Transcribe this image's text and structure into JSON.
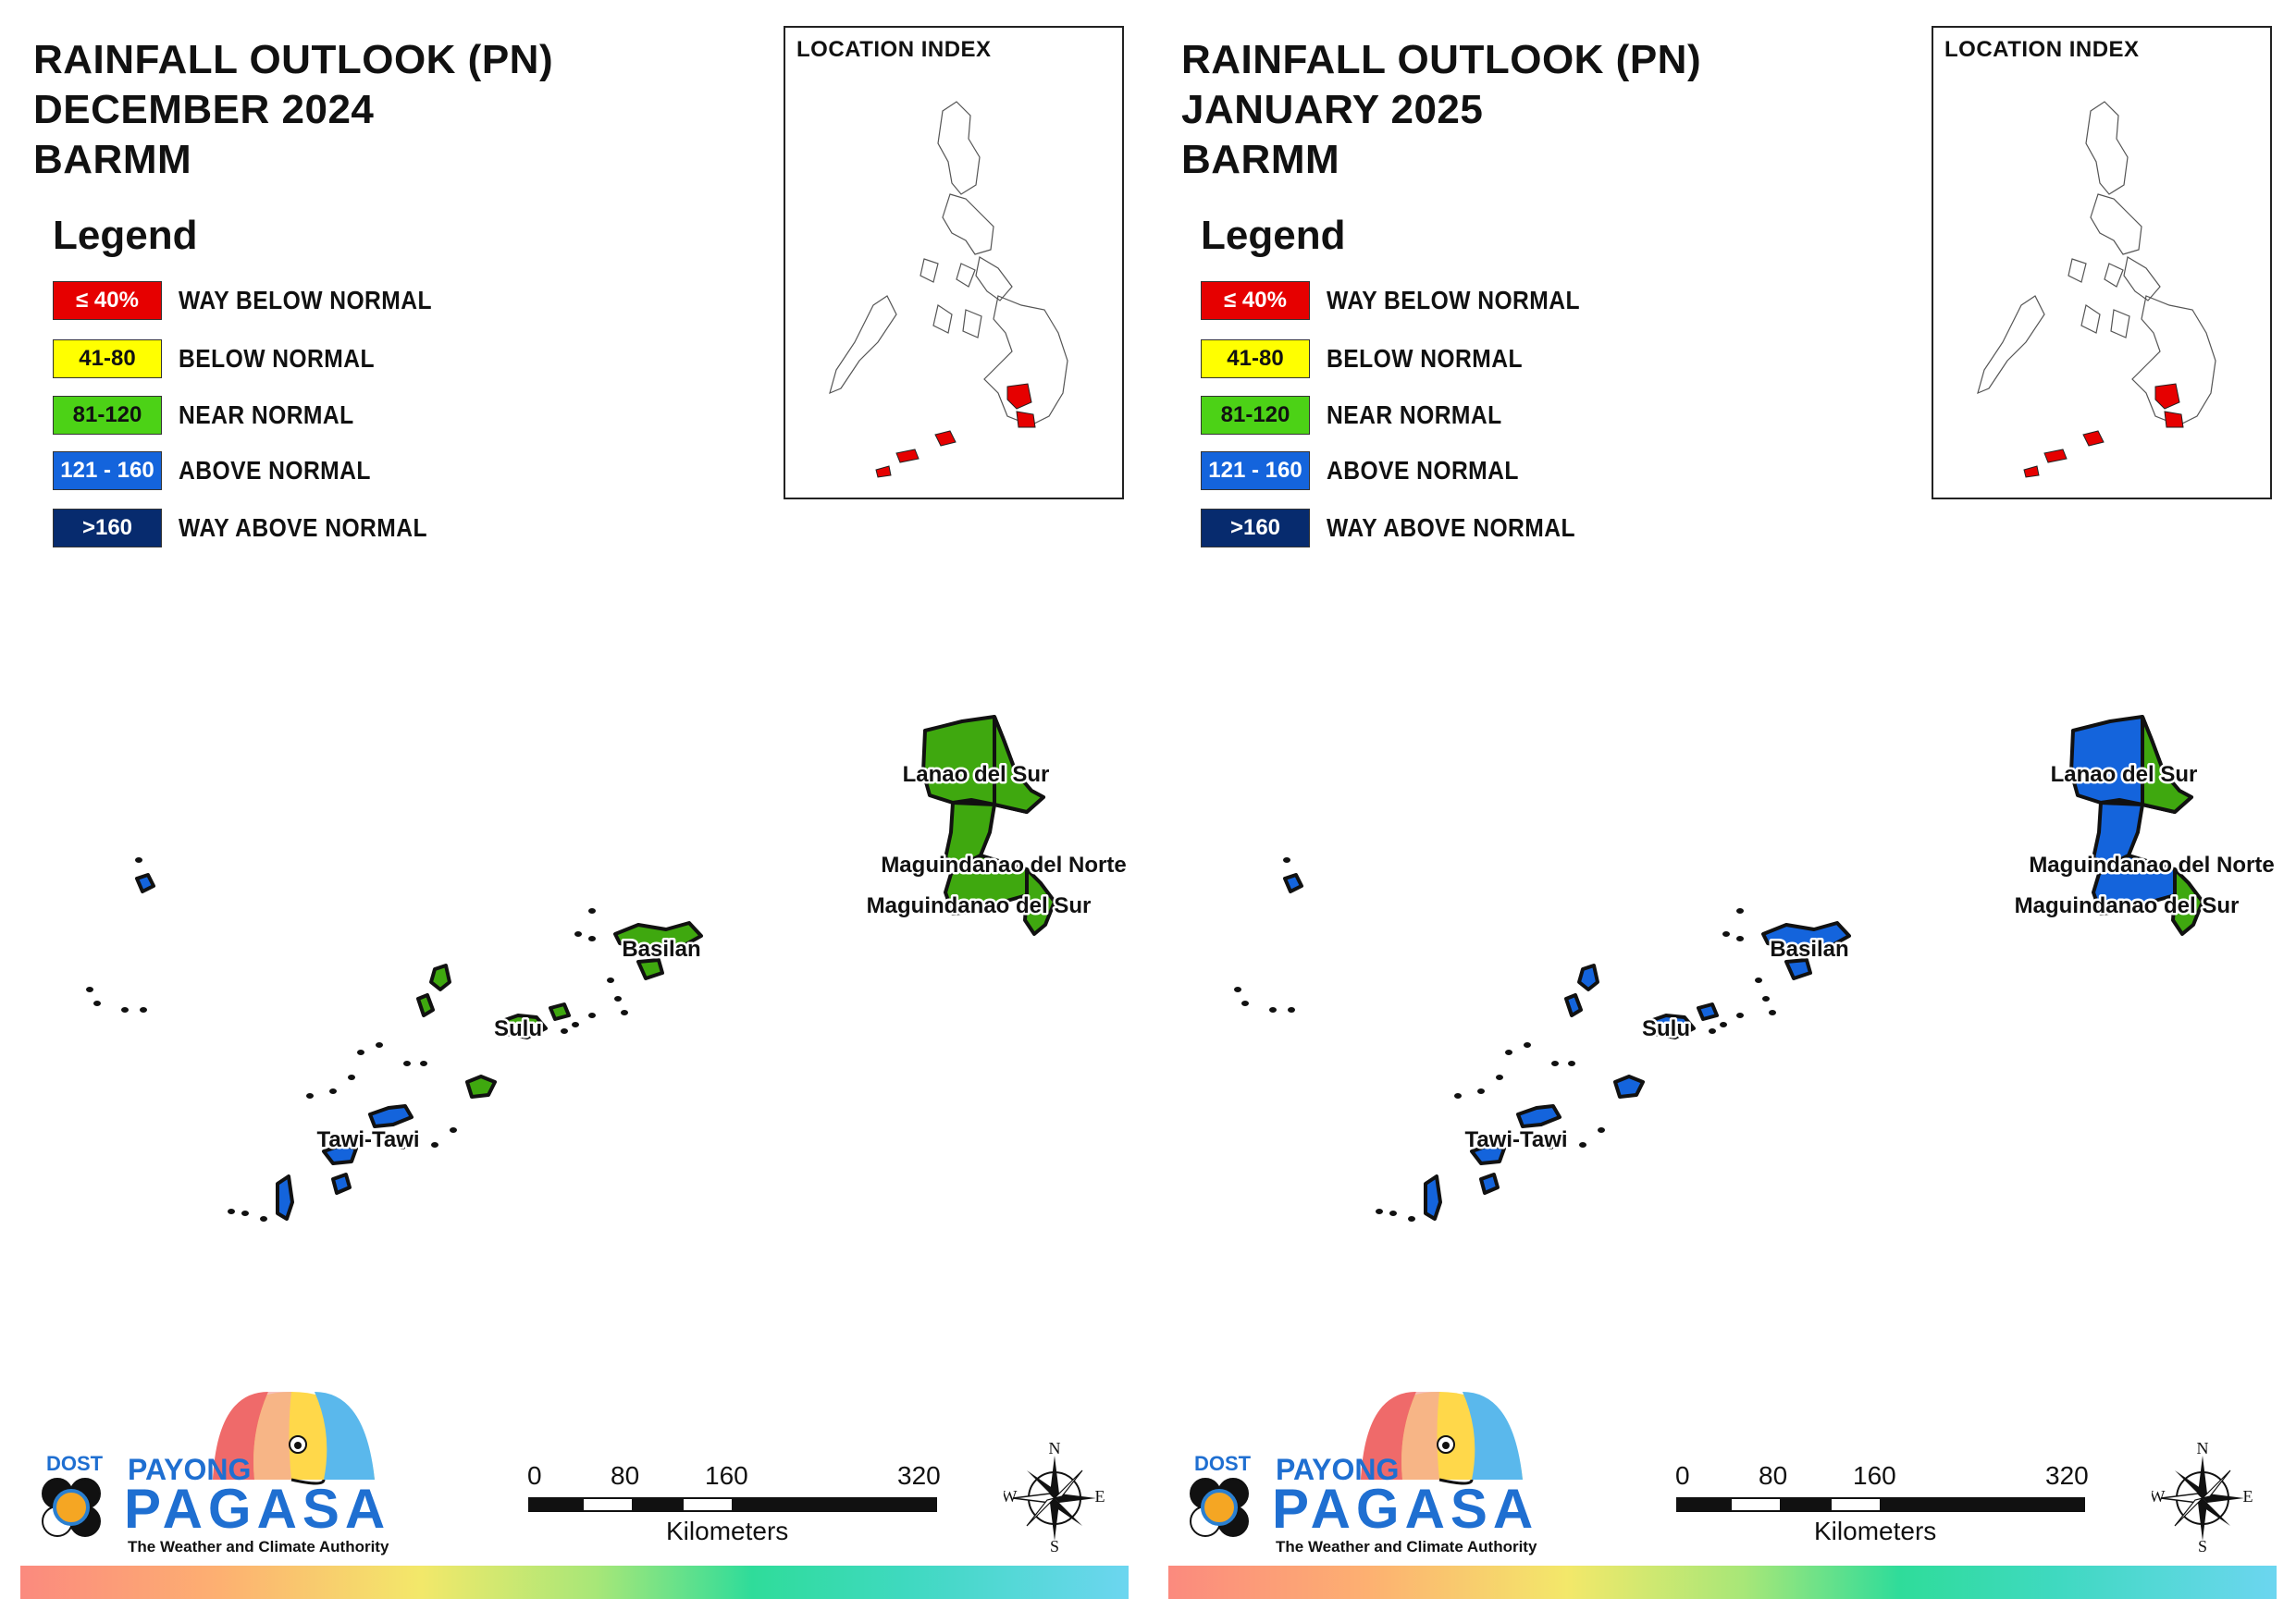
{
  "panels": [
    {
      "title_lines": [
        "RAINFALL OUTLOOK (PN)",
        "DECEMBER 2024",
        "BARMM"
      ],
      "legend_title": "Legend",
      "legend": [
        {
          "range": "≤ 40%",
          "label": "WAY BELOW NORMAL",
          "color": "#e60000",
          "text_color": "#ffffff"
        },
        {
          "range": "41-80",
          "label": "BELOW NORMAL",
          "color": "#ffff00",
          "text_color": "#111111"
        },
        {
          "range": "81-120",
          "label": "NEAR NORMAL",
          "color": "#4cd216",
          "text_color": "#111111"
        },
        {
          "range": "121 - 160",
          "label": "ABOVE NORMAL",
          "color": "#1464dc",
          "text_color": "#ffffff"
        },
        {
          "range": ">160",
          "label": "WAY ABOVE NORMAL",
          "color": "#072b6e",
          "text_color": "#ffffff"
        }
      ],
      "location_index_title": "LOCATION INDEX",
      "provinces": [
        {
          "name": "Lanao del Sur",
          "category": "NEAR NORMAL",
          "color": "#3fa80f"
        },
        {
          "name": "Maguindanao del Norte",
          "category": "NEAR NORMAL",
          "color": "#3fa80f"
        },
        {
          "name": "Maguindanao del Sur",
          "category": "NEAR NORMAL",
          "color": "#3fa80f"
        },
        {
          "name": "Basilan",
          "category": "NEAR NORMAL",
          "color": "#3fa80f"
        },
        {
          "name": "Sulu",
          "category": "NEAR NORMAL / ABOVE NORMAL",
          "color": "#3fa80f"
        },
        {
          "name": "Tawi-Tawi",
          "category": "ABOVE NORMAL",
          "color": "#1464dc"
        }
      ],
      "scale": {
        "ticks": [
          "0",
          "80",
          "160",
          "320"
        ],
        "unit": "Kilometers"
      },
      "compass": {
        "n": "N",
        "s": "S",
        "e": "E",
        "w": "W"
      },
      "logo": {
        "dost": "DOST",
        "payong": "PAYONG",
        "pagasa": "PAGASA",
        "tagline": "The Weather and Climate Authority"
      }
    },
    {
      "title_lines": [
        "RAINFALL OUTLOOK (PN)",
        "JANUARY 2025",
        "BARMM"
      ],
      "legend_title": "Legend",
      "legend": [
        {
          "range": "≤ 40%",
          "label": "WAY BELOW NORMAL",
          "color": "#e60000",
          "text_color": "#ffffff"
        },
        {
          "range": "41-80",
          "label": "BELOW NORMAL",
          "color": "#ffff00",
          "text_color": "#111111"
        },
        {
          "range": "81-120",
          "label": "NEAR NORMAL",
          "color": "#4cd216",
          "text_color": "#111111"
        },
        {
          "range": "121 - 160",
          "label": "ABOVE NORMAL",
          "color": "#1464dc",
          "text_color": "#ffffff"
        },
        {
          "range": ">160",
          "label": "WAY ABOVE NORMAL",
          "color": "#072b6e",
          "text_color": "#ffffff"
        }
      ],
      "location_index_title": "LOCATION INDEX",
      "provinces": [
        {
          "name": "Lanao del Sur",
          "category": "ABOVE NORMAL / NEAR NORMAL",
          "color": "#1464dc"
        },
        {
          "name": "Maguindanao del Norte",
          "category": "ABOVE NORMAL",
          "color": "#1464dc"
        },
        {
          "name": "Maguindanao del Sur",
          "category": "ABOVE NORMAL / NEAR NORMAL",
          "color": "#1464dc"
        },
        {
          "name": "Basilan",
          "category": "ABOVE NORMAL",
          "color": "#1464dc"
        },
        {
          "name": "Sulu",
          "category": "ABOVE NORMAL",
          "color": "#1464dc"
        },
        {
          "name": "Tawi-Tawi",
          "category": "ABOVE NORMAL",
          "color": "#1464dc"
        }
      ],
      "scale": {
        "ticks": [
          "0",
          "80",
          "160",
          "320"
        ],
        "unit": "Kilometers"
      },
      "compass": {
        "n": "N",
        "s": "S",
        "e": "E",
        "w": "W"
      },
      "logo": {
        "dost": "DOST",
        "payong": "PAYONG",
        "pagasa": "PAGASA",
        "tagline": "The Weather and Climate Authority"
      }
    }
  ],
  "colors": {
    "near_normal": "#3fa80f",
    "above_normal": "#1464dc",
    "highlight": "#e60000"
  }
}
